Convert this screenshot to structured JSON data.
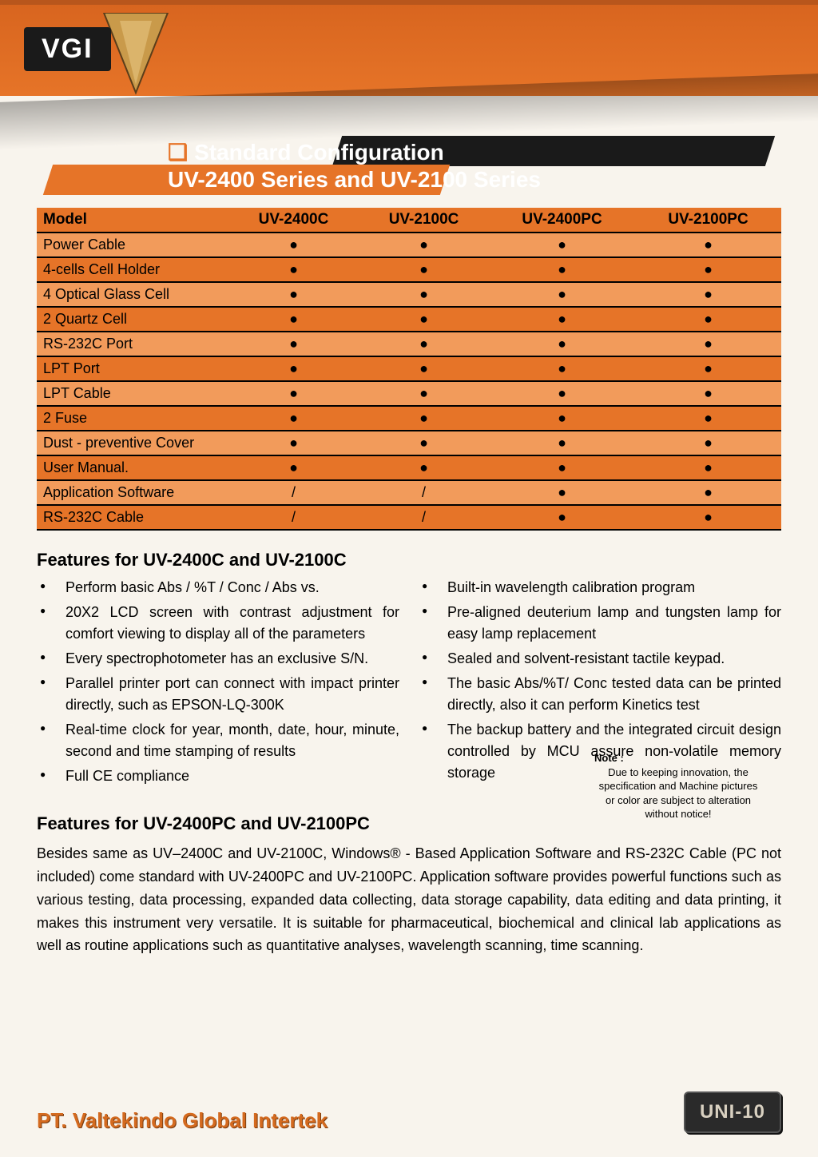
{
  "logo_text": "VGI",
  "title_line1": "Standard Configuration",
  "title_line2": "UV-2400 Series and UV-2100 Series",
  "table": {
    "columns": [
      "Model",
      "UV-2400C",
      "UV-2100C",
      "UV-2400PC",
      "UV-2100PC"
    ],
    "rows": [
      [
        "Power Cable",
        "●",
        "●",
        "●",
        "●"
      ],
      [
        "4-cells Cell Holder",
        "●",
        "●",
        "●",
        "●"
      ],
      [
        "4 Optical Glass Cell",
        "●",
        "●",
        "●",
        "●"
      ],
      [
        "2 Quartz Cell",
        "●",
        "●",
        "●",
        "●"
      ],
      [
        "RS-232C Port",
        "●",
        "●",
        "●",
        "●"
      ],
      [
        "LPT Port",
        "●",
        "●",
        "●",
        "●"
      ],
      [
        "LPT Cable",
        "●",
        "●",
        "●",
        "●"
      ],
      [
        "2 Fuse",
        "●",
        "●",
        "●",
        "●"
      ],
      [
        "Dust - preventive Cover",
        "●",
        "●",
        "●",
        "●"
      ],
      [
        "User Manual.",
        "●",
        "●",
        "●",
        "●"
      ],
      [
        "Application Software",
        "/",
        "/",
        "●",
        "●"
      ],
      [
        "RS-232C Cable",
        "/",
        "/",
        "●",
        "●"
      ]
    ]
  },
  "features_a_title": "Features for UV-2400C and UV-2100C",
  "features_a_left": [
    "Perform basic Abs / %T / Conc / Abs vs.",
    "20X2 LCD screen with contrast adjustment for comfort viewing to display all of the parameters",
    "Every spectrophotometer has an exclusive S/N.",
    "Parallel printer port can connect with impact printer directly, such as EPSON-LQ-300K",
    "Real-time clock for year, month, date, hour, minute, second and time stamping of results",
    "Full CE compliance"
  ],
  "features_a_right": [
    "Built-in wavelength calibration program",
    "Pre-aligned deuterium lamp and tungsten lamp for easy lamp replacement",
    "Sealed and solvent-resistant tactile keypad.",
    "The basic Abs/%T/ Conc tested data can be printed directly, also it can perform Kinetics test",
    "The backup battery and the integrated circuit design controlled by MCU assure non-volatile memory storage"
  ],
  "note_title": "Note :",
  "note_body": "Due to keeping innovation, the specification and Machine pictures or color are subject to alteration without notice!",
  "features_b_title": "Features for UV-2400PC and UV-2100PC",
  "features_b_para": "Besides same as UV–2400C and UV-2100C, Windows® - Based Application Software and RS-232C Cable (PC not included) come standard with UV-2400PC and UV-2100PC. Application software provides powerful functions such as various testing, data processing, expanded data collecting, data storage capability, data editing and data printing, it makes this instrument very versatile. It is suitable for pharmaceutical, biochemical and clinical lab applications as well as routine applications such as quantitative analyses, wavelength scanning, time scanning.",
  "company": "PT. Valtekindo Global Intertek",
  "page_badge": "UNI-10",
  "colors": {
    "orange_dark": "#d8651f",
    "orange_mid": "#e67428",
    "row_alt": "#f29b5b",
    "bg": "#f8f4ed",
    "black": "#1a1a1a"
  }
}
